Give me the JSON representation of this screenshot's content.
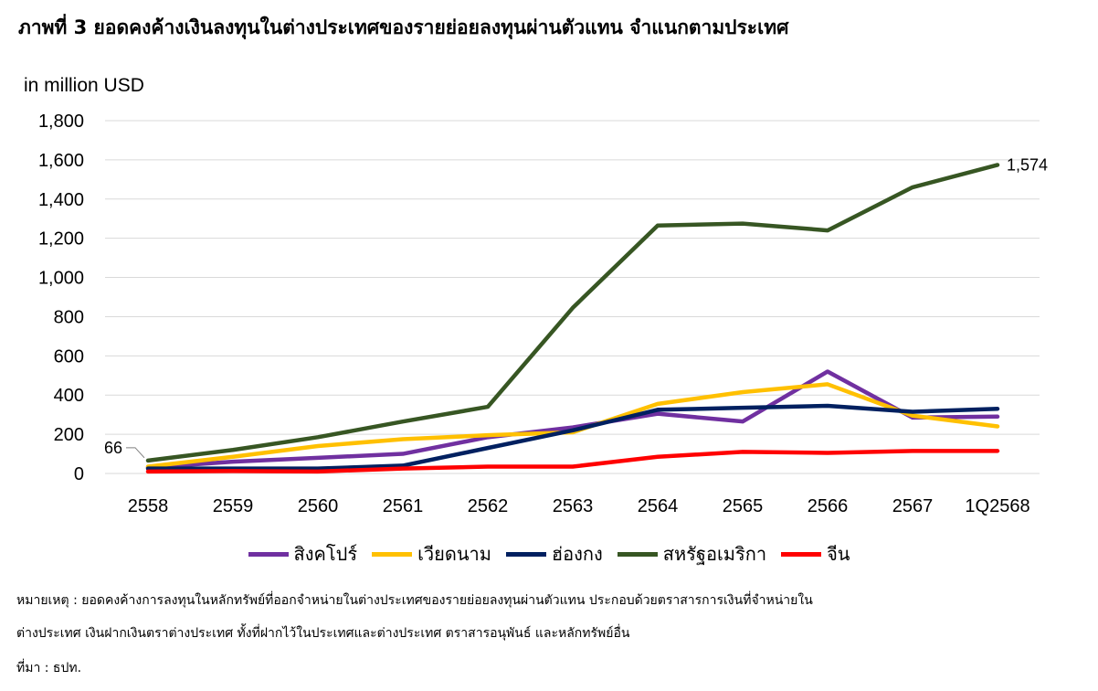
{
  "title": "ภาพที่ 3 ยอดคงค้างเงินลงทุนในต่างประเทศของรายย่อยลงทุนผ่านตัวแทน จำแนกตามประเทศ",
  "unit_label": "in million USD",
  "chart_data": {
    "type": "line",
    "categories": [
      "2558",
      "2559",
      "2560",
      "2561",
      "2562",
      "2563",
      "2564",
      "2565",
      "2566",
      "2567",
      "1Q2568"
    ],
    "ylim": [
      0,
      1800
    ],
    "yticks": [
      0,
      200,
      400,
      600,
      800,
      1000,
      1200,
      1400,
      1600,
      1800
    ],
    "ytick_labels": [
      "0",
      "200",
      "400",
      "600",
      "800",
      "1,000",
      "1,200",
      "1,400",
      "1,600",
      "1,800"
    ],
    "grid": true,
    "legend_position": "bottom",
    "series": [
      {
        "name": "สิงคโปร์",
        "color": "#7030A0",
        "values": [
          30,
          60,
          80,
          100,
          185,
          235,
          305,
          265,
          520,
          285,
          290
        ]
      },
      {
        "name": "เวียดนาม",
        "color": "#FFC000",
        "values": [
          35,
          85,
          140,
          175,
          195,
          210,
          355,
          415,
          455,
          295,
          240
        ]
      },
      {
        "name": "ฮ่องกง",
        "color": "#002060",
        "values": [
          25,
          25,
          25,
          40,
          130,
          220,
          325,
          335,
          345,
          315,
          330
        ]
      },
      {
        "name": "สหรัฐอเมริกา",
        "color": "#375623",
        "values": [
          66,
          120,
          185,
          265,
          340,
          845,
          1265,
          1275,
          1240,
          1460,
          1574
        ]
      },
      {
        "name": "จีน",
        "color": "#FF0000",
        "values": [
          10,
          12,
          10,
          25,
          35,
          35,
          85,
          110,
          105,
          115,
          115
        ]
      }
    ],
    "annotations": [
      {
        "text": "66",
        "series": "สหรัฐอเมริกา",
        "index": 0
      },
      {
        "text": "1,574",
        "series": "สหรัฐอเมริกา",
        "index": 10
      }
    ]
  },
  "notes": {
    "line1": "หมายเหตุ : ยอดคงค้างการลงทุนในหลักทรัพย์ที่ออกจำหน่ายในต่างประเทศของรายย่อยลงทุนผ่านตัวแทน ประกอบด้วยตราสารการเงินที่จำหน่ายใน",
    "line2": "ต่างประเทศ เงินฝากเงินตราต่างประเทศ ทั้งที่ฝากไว้ในประเทศและต่างประเทศ ตราสารอนุพันธ์ และหลักทรัพย์อื่น",
    "line3": "ที่มา : ธปท."
  }
}
